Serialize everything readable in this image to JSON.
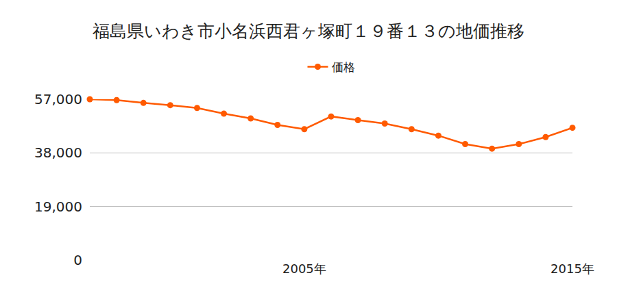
{
  "chart_data": {
    "type": "line",
    "title": "福島県いわき市小名浜西君ヶ塚町１９番１３の地価推移",
    "categories": [
      null,
      null,
      null,
      null,
      null,
      null,
      null,
      null,
      "2005年",
      null,
      null,
      null,
      null,
      null,
      null,
      null,
      null,
      null,
      "2015年"
    ],
    "series": [
      {
        "name": "価格",
        "color": "#ff5a00",
        "marker": "circle",
        "values": [
          57000,
          56700,
          55700,
          54900,
          53900,
          51900,
          50200,
          47900,
          46400,
          50900,
          49600,
          48400,
          46400,
          44100,
          41100,
          39500,
          41100,
          43600,
          46900
        ]
      }
    ],
    "ylim": [
      0,
      57000
    ],
    "yticks": [
      0,
      {
        "value": 19000,
        "label": "19,000"
      },
      {
        "value": 38000,
        "label": "38,000"
      },
      {
        "value": 57000,
        "label": "57,000"
      }
    ],
    "grid": true,
    "legend": "top"
  }
}
